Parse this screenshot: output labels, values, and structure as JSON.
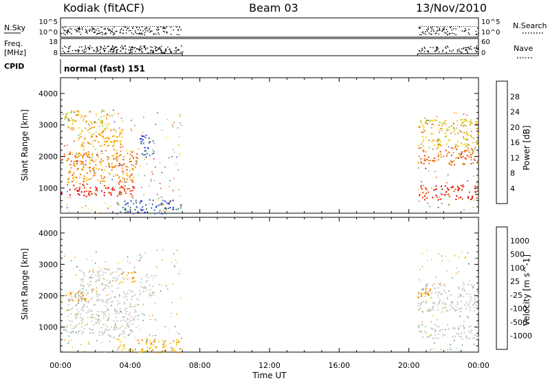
{
  "header": {
    "station": "Kodiak (fitACF)",
    "beam": "Beam 03",
    "date": "13/Nov/2010"
  },
  "strip_labels": {
    "nsky": "N.Sky",
    "nsearch": "N.Search",
    "freq": "Freq.",
    "freq_unit": "[MHz]",
    "nave": "Nave",
    "cpid": "CPID",
    "cpid_value": "normal (fast) 151"
  },
  "strip_ticks": {
    "nsky_top": "10^5",
    "nsky_bottom": "10^0",
    "nsearch_top": "10^5",
    "nsearch_bottom": "10^0",
    "freq_top": "18",
    "freq_bottom": "8",
    "nave_top": "60",
    "nave_bottom": "0"
  },
  "chart_data": [
    {
      "type": "heatmap",
      "name": "power",
      "ylabel": "Slant Range [km]",
      "ylim": [
        200,
        4500
      ],
      "yticks": [
        "1000",
        "2000",
        "3000",
        "4000"
      ],
      "colorbar_label": "Power [dB]",
      "colorbar_ticks": [
        "4",
        "8",
        "12",
        "16",
        "20",
        "24",
        "28"
      ],
      "colorbar_colors": [
        "#1a1aff",
        "#3c5fa8",
        "#3a8c5c",
        "#9bd03c",
        "#f5c800",
        "#f08c00",
        "#e84000",
        "#e00000"
      ],
      "scatter_bands": [
        {
          "t0": 0.0,
          "t1": 4.2,
          "r0": 750,
          "r1": 1150,
          "value": 28
        },
        {
          "t0": 0.0,
          "t1": 1.6,
          "r0": 1850,
          "r1": 2150,
          "value": 24
        },
        {
          "t0": 0.4,
          "t1": 4.4,
          "r0": 1200,
          "r1": 2200,
          "value": 22
        },
        {
          "t0": 1.0,
          "t1": 3.6,
          "r0": 2200,
          "r1": 2900,
          "value": 20
        },
        {
          "t0": 0.2,
          "t1": 2.8,
          "r0": 2900,
          "r1": 3500,
          "value": 18
        },
        {
          "t0": 4.5,
          "t1": 5.3,
          "r0": 2000,
          "r1": 2700,
          "value": 6
        },
        {
          "t0": 3.2,
          "t1": 6.9,
          "r0": 200,
          "r1": 650,
          "value": 6
        },
        {
          "t0": 20.5,
          "t1": 24.0,
          "r0": 650,
          "r1": 1100,
          "value": 28
        },
        {
          "t0": 20.5,
          "t1": 24.0,
          "r0": 1750,
          "r1": 2300,
          "value": 24
        },
        {
          "t0": 20.5,
          "t1": 24.0,
          "r0": 2300,
          "r1": 3200,
          "value": 18
        }
      ]
    },
    {
      "type": "heatmap",
      "name": "velocity",
      "xlabel": "Time UT",
      "ylabel": "Slant Range [km]",
      "ylim": [
        200,
        4500
      ],
      "yticks": [
        "1000",
        "2000",
        "3000",
        "4000"
      ],
      "xticks": [
        "00:00",
        "04:00",
        "08:00",
        "12:00",
        "16:00",
        "20:00",
        "00:00"
      ],
      "colorbar_label": "Velocity [m s^-1]",
      "colorbar_ticks": [
        "1000",
        "500",
        "100",
        "25",
        "-25",
        "-100",
        "-500",
        "-1000"
      ],
      "colorbar_colors": [
        "#1a3cc8",
        "#3c6fa8",
        "#3a8c6c",
        "#8cc88c",
        "#c8c8c0",
        "#f5c800",
        "#f08c00",
        "#e84000",
        "#e00000"
      ],
      "scatter_bands": [
        {
          "t0": 0.0,
          "t1": 4.2,
          "r0": 750,
          "r1": 1150,
          "value": 0
        },
        {
          "t0": 0.4,
          "t1": 4.4,
          "r0": 1200,
          "r1": 2200,
          "value": 0
        },
        {
          "t0": 0.2,
          "t1": 1.5,
          "r0": 1850,
          "r1": 2150,
          "value": -150
        },
        {
          "t0": 1.0,
          "t1": 3.6,
          "r0": 2200,
          "r1": 2900,
          "value": 0
        },
        {
          "t0": 3.4,
          "t1": 4.3,
          "r0": 2450,
          "r1": 2800,
          "value": -150
        },
        {
          "t0": 4.5,
          "t1": 5.3,
          "r0": 2000,
          "r1": 2700,
          "value": 0
        },
        {
          "t0": 3.2,
          "t1": 6.9,
          "r0": 200,
          "r1": 650,
          "value": -100
        },
        {
          "t0": 20.5,
          "t1": 24.0,
          "r0": 650,
          "r1": 1100,
          "value": 0
        },
        {
          "t0": 20.5,
          "t1": 24.0,
          "r0": 1500,
          "r1": 2400,
          "value": 0
        },
        {
          "t0": 20.5,
          "t1": 21.3,
          "r0": 1850,
          "r1": 2250,
          "value": -150
        }
      ]
    }
  ]
}
